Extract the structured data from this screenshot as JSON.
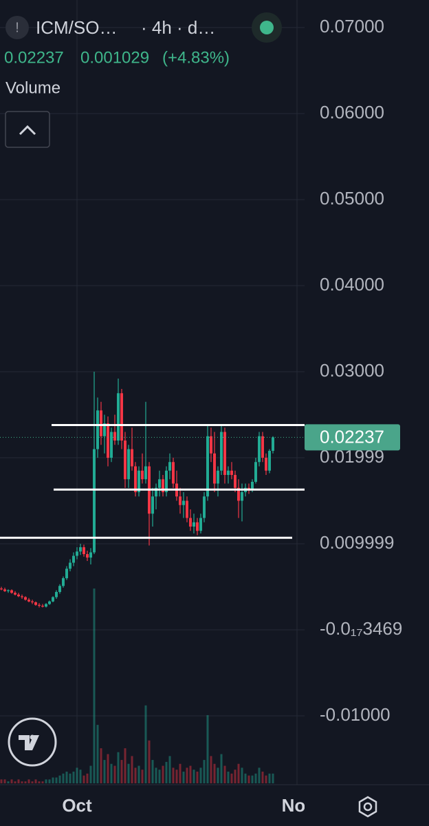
{
  "header": {
    "symbol": "ICM/SO…",
    "interval": "· 4h · d…",
    "last": "0.02237",
    "change": "0.001029",
    "change_pct": "(+4.83%)",
    "indicator": "Volume"
  },
  "chart_data": {
    "type": "candlestick",
    "categories": [
      null,
      null,
      null,
      null,
      null,
      null,
      null,
      null,
      null,
      null,
      null,
      null,
      null,
      null,
      null,
      null,
      null,
      null,
      null,
      null,
      null,
      null,
      "Oct",
      null,
      null,
      null,
      null,
      null,
      null,
      null,
      null,
      null,
      null,
      null,
      null,
      null,
      null,
      null,
      null,
      null,
      null,
      null,
      null,
      null,
      null,
      null,
      null,
      null,
      null,
      null,
      null,
      null,
      null,
      null,
      null,
      null,
      null,
      null,
      null,
      null,
      null,
      null,
      null,
      null,
      null,
      null,
      null,
      null,
      null,
      null,
      null,
      null,
      null,
      null,
      null,
      null,
      null,
      null,
      null,
      null,
      null,
      null,
      null,
      null,
      null,
      "No"
    ],
    "open": [
      0.0048,
      0.0047,
      0.0045,
      0.0046,
      0.0043,
      0.0041,
      0.0039,
      0.0038,
      0.0035,
      0.0033,
      0.0032,
      0.0029,
      0.0028,
      0.0027,
      0.003,
      0.0033,
      0.0038,
      0.0044,
      0.0051,
      0.006,
      0.0071,
      0.0078,
      0.0086,
      0.0091,
      0.0096,
      0.0088,
      0.0084,
      0.009,
      0.021,
      0.0255,
      0.0225,
      0.024,
      0.02,
      0.023,
      0.022,
      0.0275,
      0.022,
      0.0175,
      0.021,
      0.019,
      0.016,
      0.0185,
      0.0175,
      0.019,
      0.0135,
      0.0155,
      0.0165,
      0.0175,
      0.016,
      0.0185,
      0.0195,
      0.017,
      0.0155,
      0.0145,
      0.015,
      0.013,
      0.012,
      0.0125,
      0.0115,
      0.013,
      0.0155,
      0.0225,
      0.0205,
      0.017,
      0.0185,
      0.023,
      0.018,
      0.0185,
      0.018,
      0.0165,
      0.015,
      0.016,
      0.0165,
      0.0162,
      0.0172,
      0.0195,
      0.0225,
      0.02,
      0.0185,
      0.0208,
      null,
      null,
      null,
      null,
      null,
      null
    ],
    "high": [
      0.005,
      0.0049,
      0.0047,
      0.0047,
      0.0045,
      0.0043,
      0.0041,
      0.0039,
      0.0037,
      0.0035,
      0.0033,
      0.0031,
      0.003,
      0.0031,
      0.0034,
      0.0039,
      0.0046,
      0.0053,
      0.0062,
      0.0074,
      0.0082,
      0.009,
      0.0096,
      0.01,
      0.0099,
      0.0092,
      0.0095,
      0.03,
      0.027,
      0.0265,
      0.025,
      0.0248,
      0.0235,
      0.025,
      0.0292,
      0.028,
      0.023,
      0.0215,
      0.0235,
      0.0195,
      0.019,
      0.0205,
      0.0265,
      0.0195,
      0.0165,
      0.017,
      0.0185,
      0.018,
      0.019,
      0.0205,
      0.02,
      0.0185,
      0.0165,
      0.016,
      0.0155,
      0.014,
      0.0135,
      0.013,
      0.0135,
      0.016,
      0.0238,
      0.0235,
      0.023,
      0.019,
      0.0238,
      0.0235,
      0.019,
      0.0195,
      0.0185,
      0.0175,
      0.017,
      0.017,
      0.017,
      0.0175,
      0.02,
      0.023,
      0.023,
      0.0205,
      0.021,
      0.0225,
      null,
      null,
      null,
      null,
      null,
      null
    ],
    "low": [
      0.0046,
      0.0044,
      0.0043,
      0.0042,
      0.004,
      0.0038,
      0.0036,
      0.0034,
      0.0032,
      0.003,
      0.0028,
      0.0026,
      0.0026,
      0.0026,
      0.0029,
      0.0032,
      0.0036,
      0.0042,
      0.0049,
      0.0058,
      0.0068,
      0.0074,
      0.0082,
      0.0087,
      0.0085,
      0.008,
      0.0076,
      0.0088,
      0.02,
      0.0215,
      0.0205,
      0.019,
      0.0195,
      0.0215,
      0.0215,
      0.021,
      0.0165,
      0.0165,
      0.0185,
      0.0155,
      0.0155,
      0.017,
      0.017,
      0.0098,
      0.012,
      0.014,
      0.0155,
      0.0155,
      0.0155,
      0.0175,
      0.0165,
      0.015,
      0.0135,
      0.013,
      0.0125,
      0.0115,
      0.0112,
      0.011,
      0.0112,
      0.0125,
      0.015,
      0.0195,
      0.016,
      0.0155,
      0.018,
      0.017,
      0.017,
      0.0175,
      0.016,
      0.013,
      0.0126,
      0.0155,
      0.0158,
      0.016,
      0.017,
      0.019,
      0.0195,
      0.018,
      0.0182,
      0.0205,
      null,
      null,
      null,
      null,
      null,
      null
    ],
    "close": [
      0.0047,
      0.0045,
      0.0046,
      0.0043,
      0.0041,
      0.0039,
      0.0038,
      0.0035,
      0.0033,
      0.0032,
      0.0029,
      0.0028,
      0.0027,
      0.003,
      0.0033,
      0.0038,
      0.0044,
      0.0051,
      0.006,
      0.0071,
      0.0078,
      0.0086,
      0.0091,
      0.0096,
      0.0088,
      0.0084,
      0.009,
      0.021,
      0.0255,
      0.0225,
      0.024,
      0.02,
      0.023,
      0.022,
      0.0275,
      0.022,
      0.0175,
      0.021,
      0.019,
      0.016,
      0.0185,
      0.0175,
      0.019,
      0.0135,
      0.0155,
      0.0165,
      0.0175,
      0.016,
      0.0185,
      0.0195,
      0.017,
      0.0155,
      0.0145,
      0.015,
      0.013,
      0.012,
      0.0125,
      0.0115,
      0.013,
      0.0155,
      0.0225,
      0.0205,
      0.017,
      0.0185,
      0.023,
      0.018,
      0.0185,
      0.018,
      0.0165,
      0.015,
      0.016,
      0.0165,
      0.0162,
      0.0172,
      0.0195,
      0.0225,
      0.02,
      0.0185,
      0.0208,
      0.02237,
      null,
      null,
      null,
      null,
      null,
      null
    ],
    "volume": [
      2,
      2,
      1,
      2,
      1,
      2,
      1,
      1,
      2,
      1,
      2,
      1,
      1,
      2,
      2,
      3,
      3,
      4,
      5,
      6,
      5,
      6,
      8,
      7,
      4,
      5,
      9,
      100,
      30,
      18,
      12,
      15,
      10,
      9,
      16,
      12,
      18,
      10,
      14,
      8,
      9,
      7,
      40,
      22,
      12,
      8,
      7,
      9,
      11,
      14,
      8,
      7,
      10,
      6,
      8,
      9,
      7,
      6,
      8,
      12,
      35,
      14,
      10,
      8,
      15,
      9,
      6,
      5,
      7,
      10,
      8,
      5,
      4,
      4,
      5,
      8,
      6,
      4,
      5,
      5,
      null,
      null,
      null,
      null,
      null,
      null
    ],
    "up_color": "#22ab94",
    "down_color": "#f23645",
    "ylim": [
      -0.018,
      0.0732
    ],
    "yticks": [
      {
        "value": 0.07,
        "label": "0.07000"
      },
      {
        "value": 0.06,
        "label": "0.06000"
      },
      {
        "value": 0.05,
        "label": "0.05000"
      },
      {
        "value": 0.04,
        "label": "0.04000"
      },
      {
        "value": 0.03,
        "label": "0.03000"
      },
      {
        "value": 0.02,
        "label": "0.01999"
      },
      {
        "value": 0.01,
        "label": "0.009999"
      },
      {
        "value": -3.469e-18,
        "label": "-0.0₁₇3469"
      },
      {
        "value": -0.01,
        "label": "-0.01000"
      }
    ],
    "last_price": {
      "value": 0.02237,
      "label": "0.02237"
    },
    "levels": [
      0.0238,
      0.0163,
      0.0107
    ],
    "grid": true
  }
}
